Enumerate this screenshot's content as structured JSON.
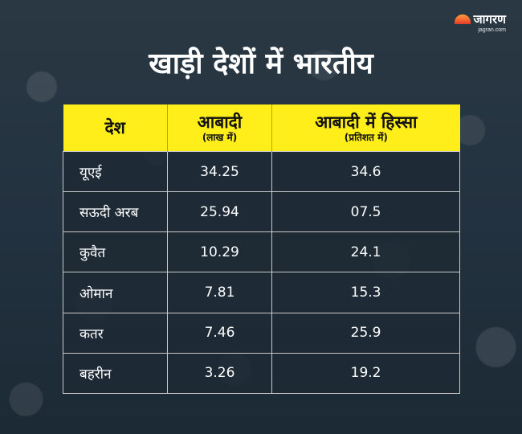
{
  "brand": {
    "name": "जागरण",
    "domain": "jagran.com",
    "colors": {
      "sun_top": "#ff9e3b",
      "sun_bottom": "#e63a2a"
    }
  },
  "title": "खाड़ी देशों में भारतीय",
  "table": {
    "header_color": "#ffee1a",
    "columns": [
      {
        "label": "देश",
        "sub": ""
      },
      {
        "label": "आबादी",
        "sub": "(लाख में)"
      },
      {
        "label": "आबादी में हिस्सा",
        "sub": "(प्रतिशत में)"
      }
    ],
    "rows": [
      {
        "country": "यूएई",
        "population": "34.25",
        "share": "34.6"
      },
      {
        "country": "सऊदी अरब",
        "population": "25.94",
        "share": "07.5"
      },
      {
        "country": "कुवैत",
        "population": "10.29",
        "share": "24.1"
      },
      {
        "country": "ओमान",
        "population": "7.81",
        "share": "15.3"
      },
      {
        "country": "कतर",
        "population": "7.46",
        "share": "25.9"
      },
      {
        "country": "बहरीन",
        "population": "3.26",
        "share": "19.2"
      }
    ]
  }
}
